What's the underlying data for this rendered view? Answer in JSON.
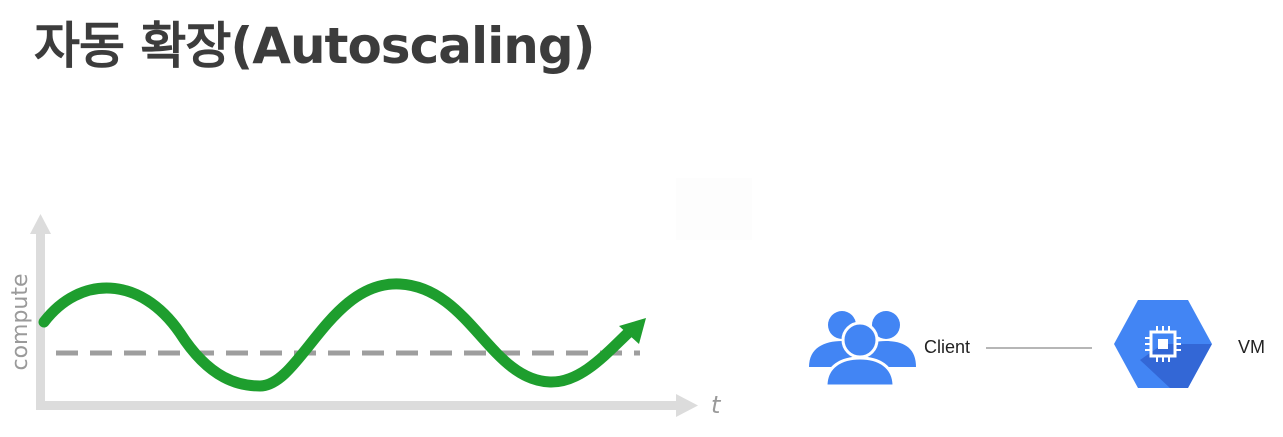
{
  "title": "자동 확장(Autoscaling)",
  "graph": {
    "y_axis_label": "compute",
    "x_axis_label": "t"
  },
  "diagram": {
    "client_label": "Client",
    "vm_label": "VM"
  },
  "colors": {
    "curve": "#1e9e2e",
    "threshold": "#9e9e9e",
    "axis": "#dcdcdc",
    "icon_blue": "#4285f4",
    "title_text": "#3c3c3c"
  },
  "icons": [
    "users-icon",
    "vm-chip-icon",
    "arrow-head-icon"
  ]
}
